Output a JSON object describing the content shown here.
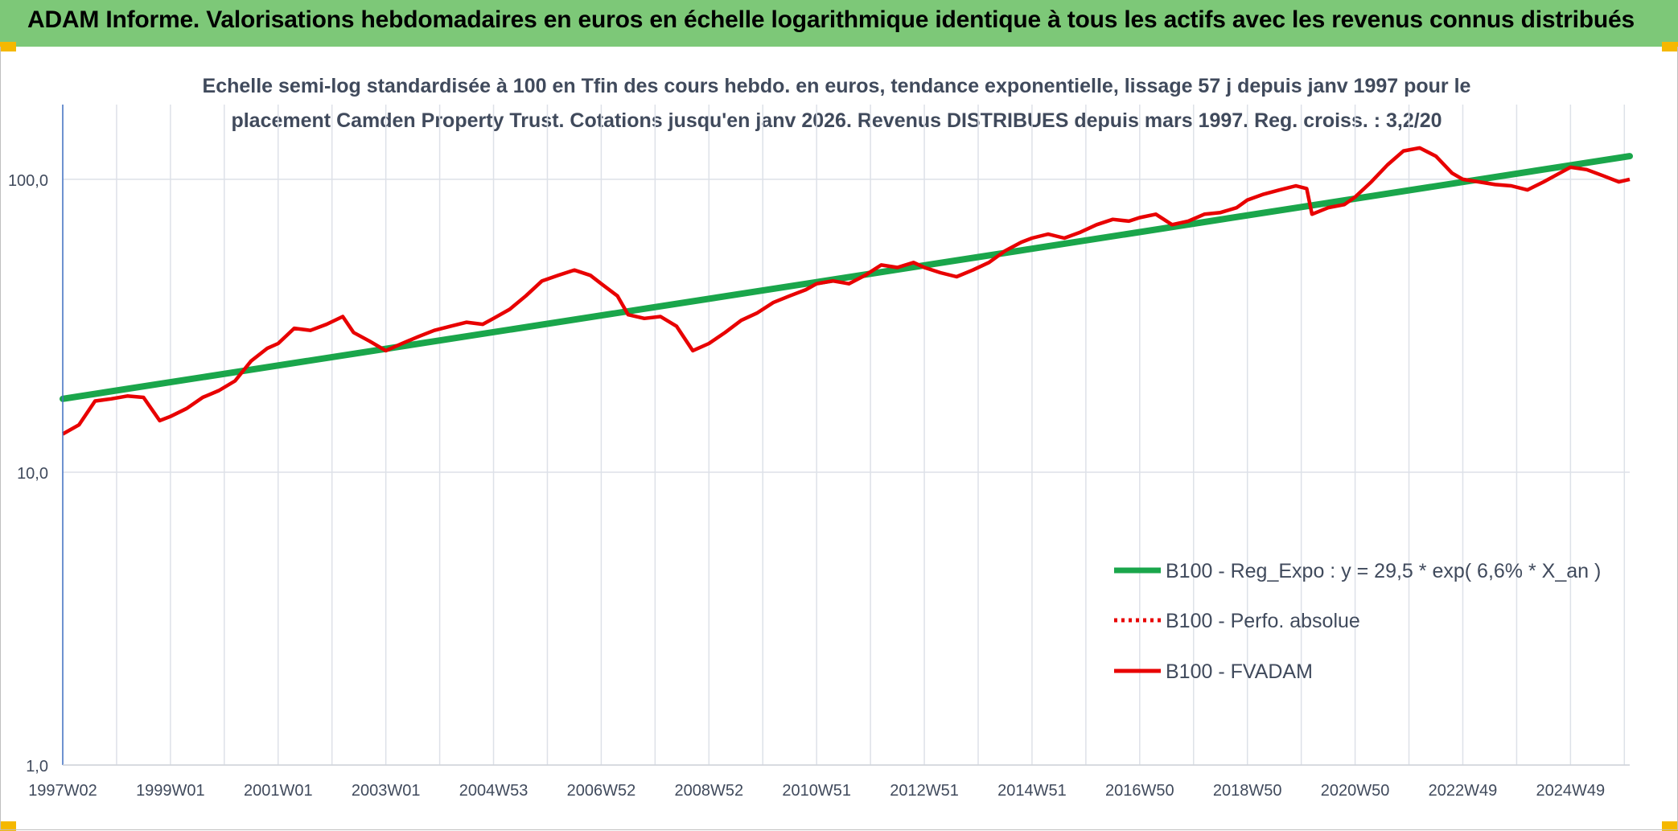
{
  "header": {
    "title": "ADAM Informe. Valorisations hebdomadaires en euros en échelle logarithmique identique à tous les actifs avec les revenus connus distribués"
  },
  "colors": {
    "header_bg": "#7dc878",
    "corner_accent": "#f5b800",
    "regression": "#1aa64b",
    "fvadam": "#e80000",
    "perfo": "#e80000"
  },
  "chart_data": {
    "type": "line",
    "title_lines": [
      "Echelle semi-log standardisée à 100 en Tfin des cours hebdo. en euros, tendance exponentielle, lissage 57 j depuis janv 1997 pour le",
      "placement Camden Property Trust. Cotations jusqu'en janv 2026. Revenus DISTRIBUES depuis mars 1997. Reg. croiss. : 3,2/20"
    ],
    "y_scale": "log",
    "ylim": [
      1,
      180
    ],
    "y_ticks": [
      {
        "value": 1,
        "label": "1,0"
      },
      {
        "value": 10,
        "label": "10,0"
      },
      {
        "value": 100,
        "label": "100,0"
      }
    ],
    "xlim": [
      1997.0,
      2026.1
    ],
    "x_ticks": [
      {
        "value": 1997.0,
        "label": "1997W02"
      },
      {
        "value": 1999.0,
        "label": "1999W01"
      },
      {
        "value": 2001.0,
        "label": "2001W01"
      },
      {
        "value": 2003.0,
        "label": "2003W01"
      },
      {
        "value": 2005.0,
        "label": "2004W53"
      },
      {
        "value": 2007.0,
        "label": "2006W52"
      },
      {
        "value": 2009.0,
        "label": "2008W52"
      },
      {
        "value": 2011.0,
        "label": "2010W51"
      },
      {
        "value": 2013.0,
        "label": "2012W51"
      },
      {
        "value": 2015.0,
        "label": "2014W51"
      },
      {
        "value": 2017.0,
        "label": "2016W50"
      },
      {
        "value": 2019.0,
        "label": "2018W50"
      },
      {
        "value": 2021.0,
        "label": "2020W50"
      },
      {
        "value": 2023.0,
        "label": "2022W49"
      },
      {
        "value": 2025.0,
        "label": "2024W49"
      }
    ],
    "grid": "vertical and horizontal",
    "legend_position": "bottom-right",
    "series": [
      {
        "name": "B100 - Reg_Expo : y = 29,5 * exp( 6,6% *  X_an )",
        "style": "solid-thick",
        "color": "#1aa64b",
        "x": [
          1997.0,
          2026.1
        ],
        "y": [
          17.8,
          120
        ]
      },
      {
        "name": "B100 - Perfo. absolue",
        "style": "dotted",
        "color": "#e80000",
        "x": [],
        "y": []
      },
      {
        "name": "B100 - FVADAM",
        "style": "solid",
        "color": "#e80000",
        "x": [
          1997.0,
          1997.3,
          1997.6,
          1997.9,
          1998.2,
          1998.5,
          1998.8,
          1999.0,
          1999.3,
          1999.6,
          1999.9,
          2000.2,
          2000.5,
          2000.8,
          2001.0,
          2001.3,
          2001.6,
          2001.9,
          2002.2,
          2002.4,
          2002.7,
          2003.0,
          2003.3,
          2003.6,
          2003.9,
          2004.2,
          2004.5,
          2004.8,
          2005.0,
          2005.3,
          2005.6,
          2005.9,
          2006.2,
          2006.5,
          2006.8,
          2007.0,
          2007.3,
          2007.5,
          2007.8,
          2008.1,
          2008.4,
          2008.7,
          2009.0,
          2009.3,
          2009.6,
          2009.9,
          2010.2,
          2010.5,
          2010.8,
          2011.0,
          2011.3,
          2011.6,
          2011.9,
          2012.2,
          2012.5,
          2012.8,
          2013.0,
          2013.3,
          2013.6,
          2013.9,
          2014.2,
          2014.5,
          2014.8,
          2015.0,
          2015.3,
          2015.6,
          2015.9,
          2016.2,
          2016.5,
          2016.8,
          2017.0,
          2017.3,
          2017.6,
          2017.9,
          2018.2,
          2018.5,
          2018.8,
          2019.0,
          2019.3,
          2019.6,
          2019.9,
          2020.1,
          2020.2,
          2020.5,
          2020.8,
          2021.0,
          2021.3,
          2021.6,
          2021.9,
          2022.2,
          2022.5,
          2022.8,
          2023.0,
          2023.3,
          2023.6,
          2023.9,
          2024.2,
          2024.5,
          2024.8,
          2025.0,
          2025.3,
          2025.6,
          2025.9,
          2026.1
        ],
        "y": [
          13.5,
          14.5,
          17.5,
          17.8,
          18.2,
          18.0,
          15.0,
          15.5,
          16.5,
          18.0,
          19.0,
          20.5,
          24.0,
          26.5,
          27.5,
          31.0,
          30.5,
          32.0,
          34.0,
          30.0,
          28.0,
          26.0,
          27.5,
          29.0,
          30.5,
          31.5,
          32.5,
          32.0,
          33.5,
          36.0,
          40.0,
          45.0,
          47.0,
          49.0,
          47.0,
          44.0,
          40.0,
          34.5,
          33.5,
          34.0,
          31.5,
          26.0,
          27.5,
          30.0,
          33.0,
          35.0,
          38.0,
          40.0,
          42.0,
          44.0,
          45.0,
          44.0,
          47.0,
          51.0,
          50.0,
          52.0,
          50.0,
          48.0,
          46.5,
          49.0,
          52.0,
          57.0,
          61.0,
          63.0,
          65.0,
          63.0,
          66.0,
          70.0,
          73.0,
          72.0,
          74.0,
          76.0,
          70.0,
          72.0,
          76.0,
          77.0,
          80.0,
          85.0,
          89.0,
          92.0,
          95.0,
          93.0,
          76.0,
          80.0,
          82.0,
          87.0,
          98.0,
          112.0,
          125.0,
          128.0,
          120.0,
          105.0,
          100.0,
          98.0,
          96.0,
          95.0,
          92.0,
          98.0,
          105.0,
          110.0,
          108.0,
          103.0,
          98.0,
          100.0
        ]
      }
    ]
  }
}
